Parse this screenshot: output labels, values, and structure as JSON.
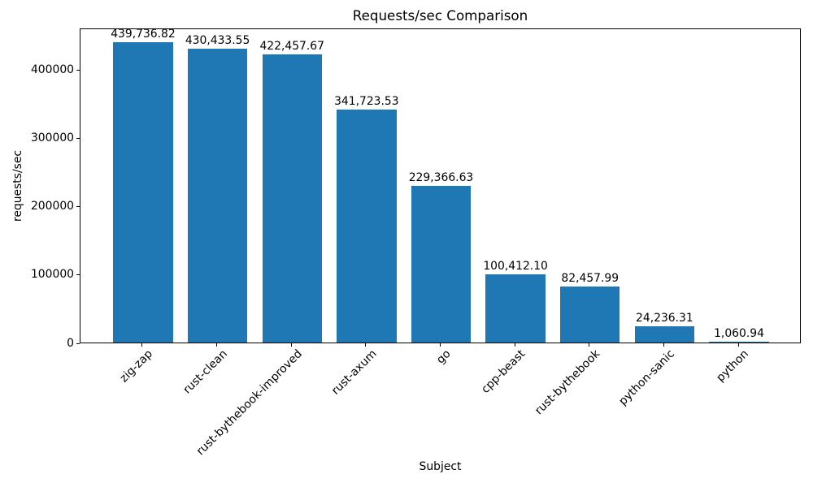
{
  "chart_data": {
    "type": "bar",
    "title": "Requests/sec Comparison",
    "xlabel": "Subject",
    "ylabel": "requests/sec",
    "categories": [
      "zig-zap",
      "rust-clean",
      "rust-bythebook-improved",
      "rust-axum",
      "go",
      "cpp-beast",
      "rust-bythebook",
      "python-sanic",
      "python"
    ],
    "values": [
      439736.82,
      430433.55,
      422457.67,
      341723.53,
      229366.63,
      100412.1,
      82457.99,
      24236.31,
      1060.94
    ],
    "bar_labels": [
      "439,736.82",
      "430,433.55",
      "422,457.67",
      "341,723.53",
      "229,366.63",
      "100,412.10",
      "82,457.99",
      "24,236.31",
      "1,060.94"
    ],
    "y_ticks": [
      0,
      100000,
      200000,
      300000,
      400000
    ],
    "y_tick_labels": [
      "0",
      "100000",
      "200000",
      "300000",
      "400000"
    ],
    "ylim": [
      0,
      461724
    ],
    "bar_color": "#1f77b4",
    "grid": false,
    "legend": false,
    "x_tick_rotation": 45
  }
}
